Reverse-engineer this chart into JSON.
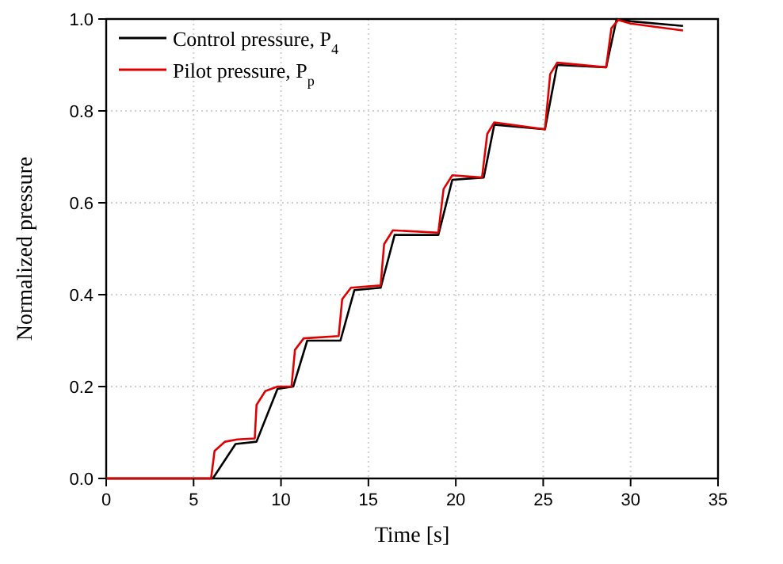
{
  "chart_data": {
    "type": "line",
    "xlabel": "Time [s]",
    "ylabel": "Normalized pressure",
    "xlim": [
      0,
      35
    ],
    "ylim": [
      0,
      1
    ],
    "xticks": [
      0,
      5,
      10,
      15,
      20,
      25,
      30,
      35
    ],
    "yticks": [
      {
        "value": 0,
        "label": "0.0"
      },
      {
        "value": 0.2,
        "label": "0.2"
      },
      {
        "value": 0.4,
        "label": "0.4"
      },
      {
        "value": 0.6,
        "label": "0.6"
      },
      {
        "value": 0.8,
        "label": "0.8"
      },
      {
        "value": 1,
        "label": "1.0"
      }
    ],
    "grid": true,
    "legend": "top left",
    "line_style": "solid",
    "marker": "none",
    "series": [
      {
        "name": "Control pressure, P$_{4}$",
        "color": "#000000",
        "x": [
          0,
          6.1,
          7.4,
          8.6,
          9.8,
          10.7,
          11.5,
          13.4,
          14.2,
          15.7,
          16.5,
          19.0,
          19.8,
          21.6,
          22.2,
          25.1,
          25.8,
          28.6,
          29.2,
          30,
          33
        ],
        "values": [
          0,
          0,
          0.075,
          0.08,
          0.195,
          0.2,
          0.3,
          0.3,
          0.41,
          0.415,
          0.53,
          0.53,
          0.65,
          0.655,
          0.77,
          0.76,
          0.9,
          0.895,
          1.0,
          0.995,
          0.985
        ]
      },
      {
        "name": "Pilot pressure, P$_{p}$",
        "color": "#e00000",
        "x": [
          0,
          6.0,
          6.2,
          6.8,
          7.5,
          8.5,
          8.6,
          9.1,
          9.8,
          10.6,
          10.8,
          11.3,
          13.3,
          13.5,
          14.0,
          15.7,
          15.9,
          16.4,
          19.0,
          19.3,
          19.8,
          21.5,
          21.8,
          22.2,
          25.1,
          25.4,
          25.8,
          28.6,
          28.9,
          29.3,
          30,
          33
        ],
        "values": [
          0,
          0,
          0.06,
          0.08,
          0.085,
          0.087,
          0.16,
          0.19,
          0.2,
          0.2,
          0.28,
          0.305,
          0.31,
          0.39,
          0.415,
          0.42,
          0.51,
          0.54,
          0.535,
          0.63,
          0.66,
          0.655,
          0.75,
          0.775,
          0.76,
          0.88,
          0.905,
          0.895,
          0.98,
          0.998,
          0.99,
          0.975
        ]
      }
    ]
  }
}
